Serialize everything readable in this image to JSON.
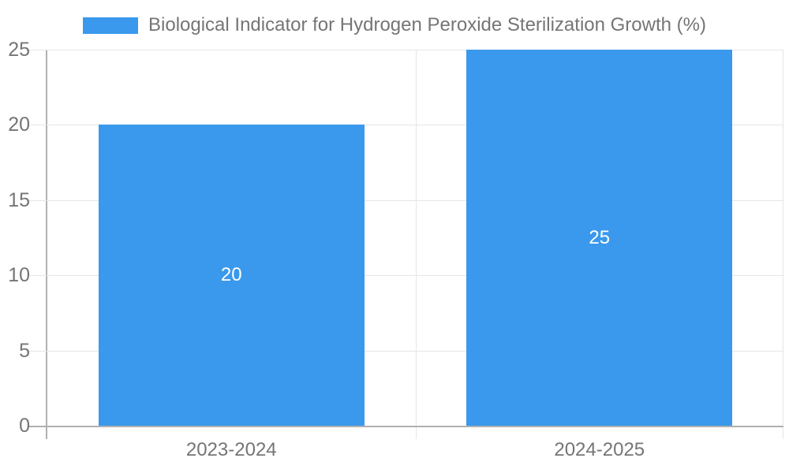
{
  "chart_data": {
    "type": "bar",
    "title": "Biological Indicator for Hydrogen Peroxide Sterilization Growth (%)",
    "categories": [
      "2023-2024",
      "2024-2025"
    ],
    "series": [
      {
        "name": "Biological Indicator for Hydrogen Peroxide Sterilization Growth (%)",
        "values": [
          20,
          25
        ]
      }
    ],
    "value_labels": [
      "20",
      "25"
    ],
    "xlabel": "",
    "ylabel": "",
    "ylim": [
      0,
      25
    ],
    "y_ticks": [
      0,
      5,
      10,
      15,
      20,
      25
    ],
    "grid": "on",
    "legend_position": "top",
    "colors": {
      "bar": "#3a99ec",
      "axis": "#b0b0b0",
      "grid": "#e6e6e6",
      "text": "#757575",
      "value_label": "#ffffff"
    }
  }
}
